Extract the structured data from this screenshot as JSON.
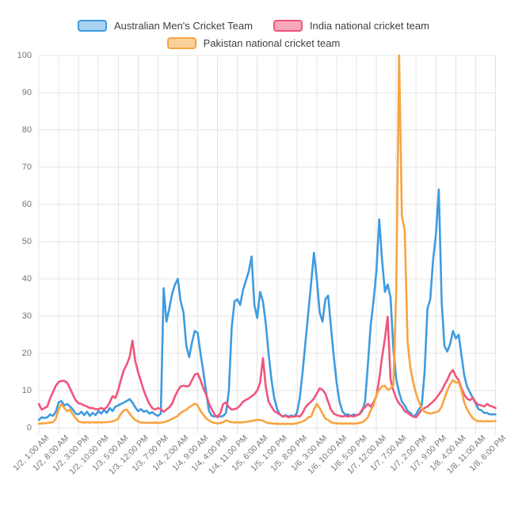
{
  "chart_data": {
    "type": "line",
    "title": "",
    "x_unit": "hourly",
    "x_tick_interval": 7,
    "x_tick_labels": [
      "1/2, 1:00 AM",
      "1/2, 8:00 AM",
      "1/2, 3:00 PM",
      "1/2, 10:00 PM",
      "1/3, 5:00 AM",
      "1/3, 12:00 PM",
      "1/3, 7:00 PM",
      "1/4, 2:00 AM",
      "1/4, 9:00 AM",
      "1/4, 4:00 PM",
      "1/4, 11:00 PM",
      "1/5, 6:00 AM",
      "1/5, 1:00 PM",
      "1/5, 8:00 PM",
      "1/6, 3:00 AM",
      "1/6, 10:00 AM",
      "1/6, 5:00 PM",
      "1/7, 12:00 AM",
      "1/7, 7:00 AM",
      "1/7, 2:00 PM",
      "1/7, 9:00 PM",
      "1/8, 4:00 AM",
      "1/8, 11:00 AM",
      "1/8, 6:00 PM"
    ],
    "ylim": [
      0,
      100
    ],
    "y_ticks": [
      0,
      10,
      20,
      30,
      40,
      50,
      60,
      70,
      80,
      90,
      100
    ],
    "grid": true,
    "grid_color": "#e4e4e4",
    "legend_position": "top",
    "axis_text_color": "#757575",
    "series": [
      {
        "name": "Australian Men's Cricket Team",
        "color": "#3f9be0",
        "fill": "#a9d2f3",
        "values": [
          2.1,
          2.8,
          2.6,
          2.8,
          3.6,
          3.2,
          4.3,
          6.8,
          7.2,
          6,
          6.4,
          5.7,
          4.9,
          3.8,
          3.6,
          4.3,
          3.4,
          4.3,
          3.2,
          4,
          3.4,
          4.5,
          3.8,
          4.8,
          4,
          5.3,
          4.5,
          5.7,
          6,
          6.4,
          6.8,
          7.2,
          7.7,
          6.8,
          5.5,
          4.5,
          5,
          4.3,
          4.6,
          3.8,
          4.2,
          3.6,
          3.2,
          3.8,
          37.5,
          28.5,
          32,
          36,
          38.5,
          40,
          34,
          31,
          22,
          19,
          23,
          26,
          25.5,
          20,
          15,
          9.6,
          4.5,
          3.2,
          3,
          3.2,
          3,
          3.2,
          4,
          10,
          27,
          34,
          34.5,
          33,
          37,
          39.5,
          42,
          46,
          33,
          29.5,
          36.5,
          34,
          28,
          20,
          13,
          8,
          5,
          3.5,
          3,
          3.4,
          3,
          3.3,
          3,
          4,
          8,
          15,
          23,
          31,
          39,
          47,
          40,
          31,
          28.5,
          34.5,
          35.5,
          27,
          19,
          12,
          7,
          4.5,
          3.5,
          3.6,
          3.2,
          3.6,
          3.3,
          3.6,
          4.5,
          7,
          17,
          27.5,
          34,
          42,
          56,
          45,
          36.5,
          38.5,
          35,
          21,
          13,
          9.5,
          7,
          6,
          4.5,
          4,
          3,
          3.6,
          5,
          6,
          15,
          32,
          34.5,
          45,
          52,
          64,
          34,
          22,
          20.5,
          22.5,
          26,
          24,
          25,
          19.5,
          14,
          11,
          9.5,
          8,
          6.5,
          5,
          4.7,
          4,
          4,
          3.6,
          3.6,
          3.6
        ]
      },
      {
        "name": "India national cricket team",
        "color": "#f0557c",
        "fill": "#f7a8bd",
        "values": [
          6.4,
          4.9,
          5.3,
          5.7,
          7.9,
          9.6,
          11.3,
          12.3,
          12.6,
          12.6,
          12.1,
          10.6,
          8.9,
          7.4,
          6.6,
          6.4,
          6,
          5.7,
          5.3,
          5.3,
          5,
          5,
          5.3,
          5,
          5.5,
          6.8,
          8.5,
          8,
          10.2,
          13,
          15.5,
          17,
          19,
          23.4,
          18,
          15,
          12.5,
          10,
          8,
          6.4,
          5.3,
          4.9,
          5.3,
          5,
          4.3,
          4.9,
          5.5,
          6.5,
          8.5,
          10,
          11.1,
          11.3,
          11.1,
          11.3,
          12.8,
          14.3,
          14.6,
          12.8,
          10.6,
          8.9,
          6.5,
          4.9,
          3.5,
          2.8,
          4,
          6.4,
          6.8,
          5.5,
          4.9,
          5,
          5.3,
          6,
          7,
          7.5,
          7.9,
          8.5,
          9,
          10,
          12.1,
          18.7,
          11,
          7,
          5.7,
          4.5,
          4,
          3.6,
          3,
          3.2,
          2.8,
          3,
          3,
          3.2,
          3,
          4,
          5.5,
          6.4,
          7,
          7.9,
          9.2,
          10.6,
          10.2,
          9.2,
          7,
          4.9,
          3.8,
          3.4,
          3.2,
          3,
          3.2,
          3,
          3.2,
          3,
          3.4,
          3.6,
          4.9,
          5.5,
          6.4,
          5.7,
          6.8,
          8.5,
          13,
          19,
          24,
          29.8,
          13,
          10,
          7.9,
          6.5,
          5.7,
          4.5,
          4,
          3.4,
          3,
          2.8,
          3.8,
          4.9,
          5.3,
          5.7,
          6.4,
          7,
          7.9,
          8.9,
          10,
          11.5,
          12.8,
          14.6,
          15.5,
          13.8,
          12.8,
          10.6,
          8.9,
          7.8,
          7.4,
          8.1,
          6.8,
          6.2,
          6,
          5.7,
          6.4,
          5.9,
          5.7,
          5.3
        ]
      },
      {
        "name": "Pakistan national cricket team",
        "color": "#f9a43f",
        "fill": "#fbd09b",
        "values": [
          1.1,
          1.2,
          1.2,
          1.3,
          1.4,
          1.5,
          2.5,
          5,
          6.4,
          5.3,
          4.5,
          4.9,
          3.6,
          2.6,
          1.7,
          1.5,
          1.4,
          1.5,
          1.4,
          1.5,
          1.4,
          1.5,
          1.4,
          1.5,
          1.5,
          1.6,
          1.7,
          2,
          2.5,
          3.8,
          4.7,
          4.9,
          3.8,
          2.8,
          2.1,
          1.7,
          1.4,
          1.4,
          1.3,
          1.4,
          1.3,
          1.4,
          1.3,
          1.4,
          1.5,
          1.7,
          2,
          2.4,
          2.8,
          3.2,
          4,
          4.5,
          4.8,
          5.5,
          6,
          6.5,
          6,
          4.5,
          3.5,
          2.5,
          2,
          1.5,
          1.3,
          1.2,
          1.3,
          1.5,
          2,
          1.7,
          1.5,
          1.4,
          1.5,
          1.4,
          1.5,
          1.6,
          1.7,
          1.8,
          2,
          2.1,
          2.1,
          1.9,
          1.5,
          1.3,
          1.2,
          1.1,
          1.1,
          1,
          1.1,
          1,
          1.1,
          1,
          1.1,
          1.2,
          1.4,
          1.7,
          2.1,
          2.8,
          3,
          4.9,
          6.4,
          5.3,
          3.8,
          2.5,
          2.1,
          1.5,
          1.3,
          1.2,
          1.2,
          1.1,
          1.2,
          1.1,
          1.2,
          1.1,
          1.2,
          1.3,
          1.5,
          2,
          2.8,
          4.7,
          6,
          8.9,
          10.2,
          11.1,
          11.3,
          10.2,
          10.6,
          11.5,
          37,
          100,
          57,
          53,
          23,
          16,
          12.1,
          9.2,
          7,
          5.3,
          4.3,
          4,
          3.8,
          4,
          4.2,
          4.5,
          5.7,
          7.9,
          10,
          11.7,
          12.8,
          12.1,
          12.3,
          10,
          6.8,
          4.9,
          3.6,
          2.6,
          2,
          1.7,
          1.8,
          1.7,
          1.8,
          1.7,
          1.8,
          1.8
        ]
      }
    ]
  }
}
